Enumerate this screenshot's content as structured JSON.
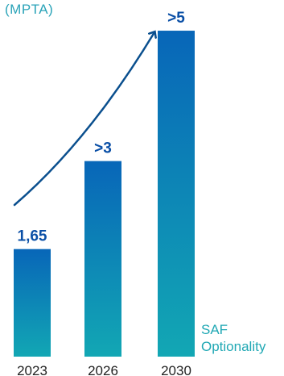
{
  "chart_data": {
    "type": "bar",
    "unit_label": "(MPTA)",
    "categories": [
      "2023",
      "2026",
      "2030"
    ],
    "values": [
      1.65,
      3,
      5
    ],
    "value_labels": [
      "1,65",
      ">3",
      ">5"
    ],
    "annotation": "SAF Optionality",
    "annotation_lines": [
      "SAF",
      "Optionality"
    ],
    "ylim": [
      0,
      5.05
    ],
    "grid": false,
    "legend": "none",
    "trend_arrow": true
  },
  "colors": {
    "bar_top": "#0866b8",
    "bar_bottom": "#12a7b4",
    "value_label": "#0a4fa6",
    "axis_text": "#222222",
    "arrow": "#0a4f8e",
    "annotation": "#20a8b4"
  }
}
